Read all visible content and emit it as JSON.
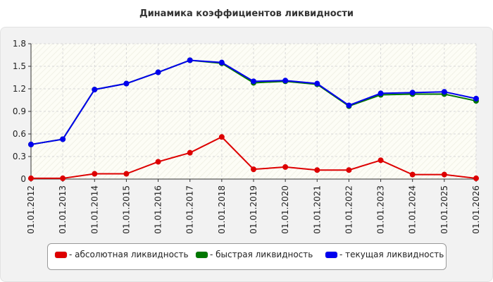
{
  "chart_data": {
    "type": "line",
    "title": "Динамика коэффициентов ликвидности",
    "xlabel": "",
    "ylabel": "",
    "categories": [
      "01.01.2012",
      "01.01.2013",
      "01.01.2014",
      "01.01.2015",
      "01.01.2016",
      "01.01.2017",
      "01.01.2018",
      "01.01.2019",
      "01.01.2020",
      "01.01.2021",
      "01.01.2022",
      "01.01.2023",
      "01.01.2024",
      "01.01.2025",
      "01.01.2026"
    ],
    "ylim": [
      0,
      1.8
    ],
    "yticks": [
      "0",
      "0.3",
      "0.6",
      "0.9",
      "1.2",
      "1.5",
      "1.8"
    ],
    "grid": true,
    "legend_position": "bottom",
    "series": [
      {
        "name": "- абсолютная ликвидность",
        "color": "#dd0000",
        "values": [
          0.01,
          0.01,
          0.07,
          0.07,
          0.23,
          0.35,
          0.56,
          0.13,
          0.16,
          0.12,
          0.12,
          0.25,
          0.06,
          0.06,
          0.01
        ]
      },
      {
        "name": "- быстрая ликвидность",
        "color": "#007700",
        "values": [
          0.46,
          0.53,
          1.19,
          1.27,
          1.42,
          1.58,
          1.54,
          1.28,
          1.3,
          1.26,
          0.97,
          1.12,
          1.13,
          1.13,
          1.04
        ]
      },
      {
        "name": "- текущая ликвидность",
        "color": "#0000ee",
        "values": [
          0.46,
          0.53,
          1.19,
          1.27,
          1.42,
          1.58,
          1.55,
          1.3,
          1.31,
          1.27,
          0.98,
          1.14,
          1.15,
          1.16,
          1.07
        ]
      }
    ]
  }
}
